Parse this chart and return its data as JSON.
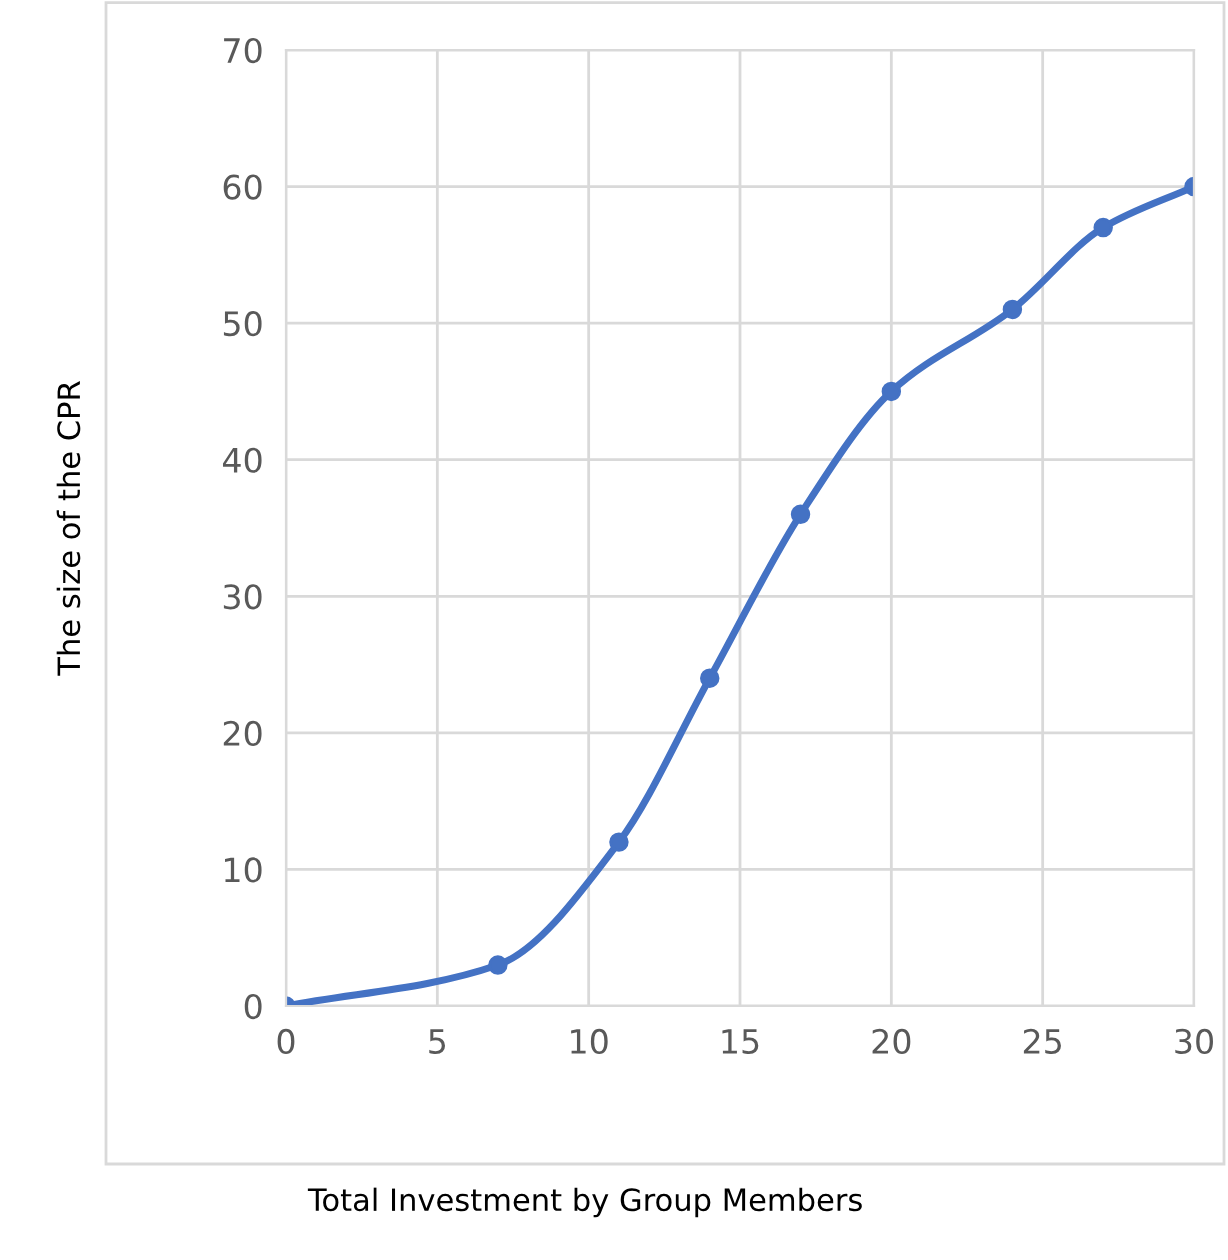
{
  "chart_data": {
    "type": "line",
    "xlabel": "Total Investment by Group Members",
    "ylabel": "The size of the CPR",
    "x": [
      0,
      7,
      11,
      14,
      17,
      20,
      24,
      27,
      30
    ],
    "series": [
      {
        "color": "#4472c4",
        "values": [
          0,
          3,
          12,
          24,
          36,
          45,
          51,
          57,
          60
        ]
      }
    ],
    "xlim": [
      0,
      30
    ],
    "xticks": [
      0,
      5,
      10,
      15,
      20,
      25,
      30
    ],
    "ylim": [
      0,
      70
    ],
    "yticks": [
      0,
      10,
      20,
      30,
      40,
      50,
      60,
      70
    ],
    "grid": true,
    "marker": "circle",
    "line_style": "solid"
  }
}
